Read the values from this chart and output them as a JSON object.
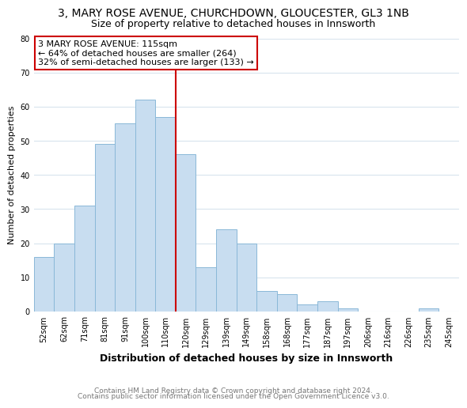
{
  "title1": "3, MARY ROSE AVENUE, CHURCHDOWN, GLOUCESTER, GL3 1NB",
  "title2": "Size of property relative to detached houses in Innsworth",
  "xlabel": "Distribution of detached houses by size in Innsworth",
  "ylabel": "Number of detached properties",
  "categories": [
    "52sqm",
    "62sqm",
    "71sqm",
    "81sqm",
    "91sqm",
    "100sqm",
    "110sqm",
    "120sqm",
    "129sqm",
    "139sqm",
    "149sqm",
    "158sqm",
    "168sqm",
    "177sqm",
    "187sqm",
    "197sqm",
    "206sqm",
    "216sqm",
    "226sqm",
    "235sqm",
    "245sqm"
  ],
  "values": [
    16,
    20,
    31,
    49,
    55,
    62,
    57,
    46,
    13,
    24,
    20,
    6,
    5,
    2,
    3,
    1,
    0,
    0,
    0,
    1,
    0
  ],
  "bar_color": "#c8ddf0",
  "bar_edge_color": "#8ab8d8",
  "vline_x": 6.5,
  "vline_color": "#cc0000",
  "annotation_line1": "3 MARY ROSE AVENUE: 115sqm",
  "annotation_line2": "← 64% of detached houses are smaller (264)",
  "annotation_line3": "32% of semi-detached houses are larger (133) →",
  "annotation_box_edge_color": "#cc0000",
  "annotation_box_bg": "#ffffff",
  "ylim": [
    0,
    80
  ],
  "yticks": [
    0,
    10,
    20,
    30,
    40,
    50,
    60,
    70,
    80
  ],
  "footer_line1": "Contains HM Land Registry data © Crown copyright and database right 2024.",
  "footer_line2": "Contains public sector information licensed under the Open Government Licence v3.0.",
  "background_color": "#ffffff",
  "grid_color": "#d8e4ed",
  "title1_fontsize": 10,
  "title2_fontsize": 9,
  "xlabel_fontsize": 9,
  "ylabel_fontsize": 8,
  "tick_fontsize": 7,
  "annotation_fontsize": 8,
  "footer_fontsize": 6.5
}
